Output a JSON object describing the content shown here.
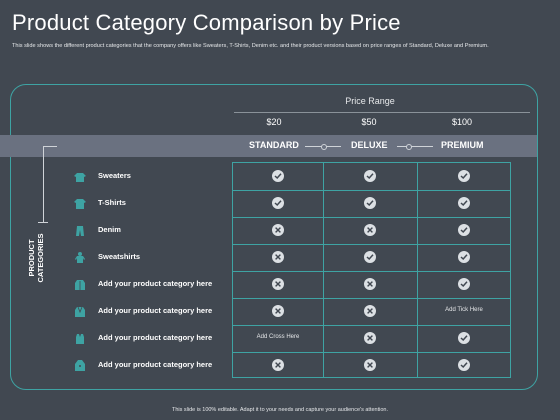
{
  "slide": {
    "title": "Product Category Comparison by Price",
    "subtitle": "This slide shows the different product categories that the company offers like Sweaters, T-Shirts, Denim etc. and their product versions based on price ranges of Standard, Deluxe and Premium.",
    "footer": "This slide is 100% editable. Adapt it to your needs and capture your audience's attention."
  },
  "header": {
    "price_range_label": "Price Range",
    "prices": [
      "$20",
      "$50",
      "$100"
    ],
    "tiers": [
      "STANDARD",
      "DELUXE",
      "PREMIUM"
    ]
  },
  "side_label": {
    "line1": "PRODUCT",
    "line2": "CATEGORIES"
  },
  "rows": [
    {
      "label": "Sweaters",
      "icon": "sweater-icon",
      "cells": [
        "check",
        "check",
        "check"
      ]
    },
    {
      "label": "T-Shirts",
      "icon": "tshirt-icon",
      "cells": [
        "check",
        "check",
        "check"
      ]
    },
    {
      "label": "Denim",
      "icon": "denim-icon",
      "cells": [
        "cross",
        "cross",
        "check"
      ]
    },
    {
      "label": "Sweatshirts",
      "icon": "sweatshirt-icon",
      "cells": [
        "cross",
        "check",
        "check"
      ]
    },
    {
      "label": "Add your product category here",
      "icon": "jacket-icon",
      "cells": [
        "cross",
        "cross",
        "check"
      ]
    },
    {
      "label": "Add your product category here",
      "icon": "blazer-icon",
      "cells": [
        "cross",
        "cross",
        "Add Tick Here"
      ]
    },
    {
      "label": "Add your product category here",
      "icon": "vest-icon",
      "cells": [
        "Add Cross Here",
        "cross",
        "check"
      ]
    },
    {
      "label": "Add your product category here",
      "icon": "coat-icon",
      "cells": [
        "cross",
        "cross",
        "check"
      ]
    }
  ],
  "colors": {
    "background": "#414851",
    "accent": "#3ea3a3",
    "band": "#6a7180",
    "mark": "#dce0e4"
  }
}
